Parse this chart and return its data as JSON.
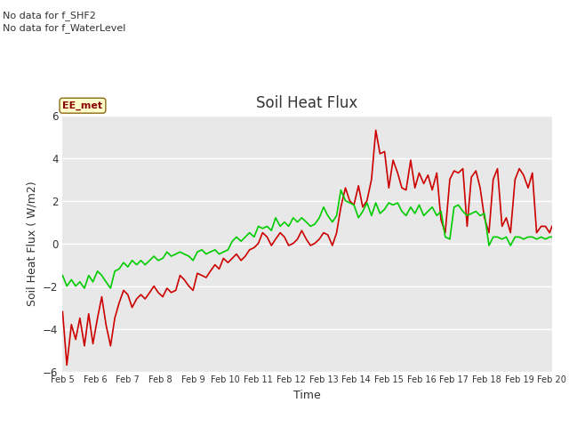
{
  "title": "Soil Heat Flux",
  "xlabel": "Time",
  "ylabel": "Soil Heat Flux (W/m2)",
  "ylim": [
    -6,
    6
  ],
  "plot_bg_color": "#e8e8e8",
  "fig_bg_color": "#ffffff",
  "no_data_text": [
    "No data for f_SHF2",
    "No data for f_WaterLevel"
  ],
  "ee_met_label": "EE_met",
  "shf1_color": "#cc0000",
  "shf3_color": "#00cc00",
  "x_tick_labels": [
    "Feb 5",
    "Feb 6",
    "Feb 7",
    "Feb 8",
    "Feb 9",
    "Feb 10",
    "Feb 11",
    "Feb 12",
    "Feb 13",
    "Feb 14",
    "Feb 15",
    "Feb 16",
    "Feb 17",
    "Feb 18",
    "Feb 19",
    "Feb 20"
  ],
  "shf1_x": [
    0.0,
    0.13,
    0.27,
    0.4,
    0.53,
    0.67,
    0.8,
    0.93,
    1.07,
    1.2,
    1.33,
    1.47,
    1.6,
    1.73,
    1.87,
    2.0,
    2.13,
    2.27,
    2.4,
    2.53,
    2.67,
    2.8,
    2.93,
    3.07,
    3.2,
    3.33,
    3.47,
    3.6,
    3.73,
    3.87,
    4.0,
    4.13,
    4.27,
    4.4,
    4.53,
    4.67,
    4.8,
    4.93,
    5.07,
    5.2,
    5.33,
    5.47,
    5.6,
    5.73,
    5.87,
    6.0,
    6.13,
    6.27,
    6.4,
    6.53,
    6.67,
    6.8,
    6.93,
    7.07,
    7.2,
    7.33,
    7.47,
    7.6,
    7.73,
    7.87,
    8.0,
    8.13,
    8.27,
    8.4,
    8.53,
    8.67,
    8.8,
    8.93,
    9.07,
    9.2,
    9.33,
    9.47,
    9.6,
    9.73,
    9.87,
    10.0,
    10.13,
    10.27,
    10.4,
    10.53,
    10.67,
    10.8,
    10.93,
    11.07,
    11.2,
    11.33,
    11.47,
    11.6,
    11.73,
    11.87,
    12.0,
    12.13,
    12.27,
    12.4,
    12.53,
    12.67,
    12.8,
    12.93,
    13.07,
    13.2,
    13.33,
    13.47,
    13.6,
    13.73,
    13.87,
    14.0,
    14.13,
    14.27,
    14.4,
    14.53,
    14.67,
    14.8,
    14.93,
    15.0
  ],
  "shf1_y": [
    -3.2,
    -5.7,
    -3.8,
    -4.5,
    -3.5,
    -4.8,
    -3.3,
    -4.7,
    -3.5,
    -2.5,
    -3.8,
    -4.8,
    -3.5,
    -2.8,
    -2.2,
    -2.4,
    -3.0,
    -2.6,
    -2.4,
    -2.6,
    -2.3,
    -2.0,
    -2.3,
    -2.5,
    -2.1,
    -2.3,
    -2.2,
    -1.5,
    -1.7,
    -2.0,
    -2.2,
    -1.4,
    -1.5,
    -1.6,
    -1.3,
    -1.0,
    -1.2,
    -0.7,
    -0.9,
    -0.7,
    -0.5,
    -0.8,
    -0.6,
    -0.3,
    -0.2,
    0.0,
    0.5,
    0.3,
    -0.1,
    0.2,
    0.5,
    0.3,
    -0.1,
    0.0,
    0.2,
    0.6,
    0.2,
    -0.1,
    0.0,
    0.2,
    0.5,
    0.4,
    -0.1,
    0.5,
    1.7,
    2.6,
    2.0,
    1.8,
    2.7,
    1.7,
    2.0,
    3.0,
    5.3,
    4.2,
    4.3,
    2.6,
    3.9,
    3.3,
    2.6,
    2.5,
    3.9,
    2.6,
    3.3,
    2.8,
    3.2,
    2.5,
    3.3,
    1.1,
    0.5,
    3.0,
    3.4,
    3.3,
    3.5,
    0.8,
    3.1,
    3.4,
    2.6,
    1.2,
    0.5,
    3.0,
    3.5,
    0.8,
    1.2,
    0.5,
    3.0,
    3.5,
    3.2,
    2.6,
    3.3,
    0.5,
    0.8,
    0.8,
    0.5,
    0.8
  ],
  "shf3_x": [
    0.0,
    0.13,
    0.27,
    0.4,
    0.53,
    0.67,
    0.8,
    0.93,
    1.07,
    1.2,
    1.33,
    1.47,
    1.6,
    1.73,
    1.87,
    2.0,
    2.13,
    2.27,
    2.4,
    2.53,
    2.67,
    2.8,
    2.93,
    3.07,
    3.2,
    3.33,
    3.47,
    3.6,
    3.73,
    3.87,
    4.0,
    4.13,
    4.27,
    4.4,
    4.53,
    4.67,
    4.8,
    4.93,
    5.07,
    5.2,
    5.33,
    5.47,
    5.6,
    5.73,
    5.87,
    6.0,
    6.13,
    6.27,
    6.4,
    6.53,
    6.67,
    6.8,
    6.93,
    7.07,
    7.2,
    7.33,
    7.47,
    7.6,
    7.73,
    7.87,
    8.0,
    8.13,
    8.27,
    8.4,
    8.53,
    8.67,
    8.8,
    8.93,
    9.07,
    9.2,
    9.33,
    9.47,
    9.6,
    9.73,
    9.87,
    10.0,
    10.13,
    10.27,
    10.4,
    10.53,
    10.67,
    10.8,
    10.93,
    11.07,
    11.2,
    11.33,
    11.47,
    11.6,
    11.73,
    11.87,
    12.0,
    12.13,
    12.27,
    12.4,
    12.53,
    12.67,
    12.8,
    12.93,
    13.07,
    13.2,
    13.33,
    13.47,
    13.6,
    13.73,
    13.87,
    14.0,
    14.13,
    14.27,
    14.4,
    14.53,
    14.67,
    14.8,
    14.93,
    15.0
  ],
  "shf3_y": [
    -1.5,
    -2.0,
    -1.7,
    -2.0,
    -1.8,
    -2.1,
    -1.5,
    -1.8,
    -1.3,
    -1.5,
    -1.8,
    -2.1,
    -1.3,
    -1.2,
    -0.9,
    -1.1,
    -0.8,
    -1.0,
    -0.8,
    -1.0,
    -0.8,
    -0.6,
    -0.8,
    -0.7,
    -0.4,
    -0.6,
    -0.5,
    -0.4,
    -0.5,
    -0.6,
    -0.8,
    -0.4,
    -0.3,
    -0.5,
    -0.4,
    -0.3,
    -0.5,
    -0.4,
    -0.3,
    0.1,
    0.3,
    0.1,
    0.3,
    0.5,
    0.3,
    0.8,
    0.7,
    0.8,
    0.6,
    1.2,
    0.8,
    1.0,
    0.8,
    1.2,
    1.0,
    1.2,
    1.0,
    0.8,
    0.9,
    1.2,
    1.7,
    1.3,
    1.0,
    1.3,
    2.5,
    2.0,
    1.9,
    1.8,
    1.2,
    1.5,
    1.9,
    1.3,
    1.9,
    1.4,
    1.6,
    1.9,
    1.8,
    1.9,
    1.5,
    1.3,
    1.7,
    1.4,
    1.8,
    1.3,
    1.5,
    1.7,
    1.3,
    1.5,
    0.3,
    0.2,
    1.7,
    1.8,
    1.5,
    1.3,
    1.4,
    1.5,
    1.3,
    1.4,
    -0.1,
    0.3,
    0.3,
    0.2,
    0.3,
    -0.1,
    0.3,
    0.3,
    0.2,
    0.3,
    0.3,
    0.2,
    0.3,
    0.2,
    0.3,
    0.3
  ]
}
